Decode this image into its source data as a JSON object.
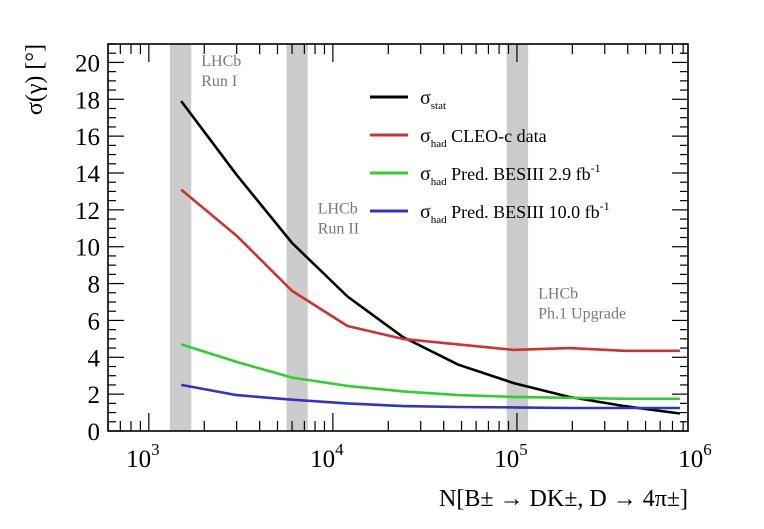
{
  "chart_data": {
    "type": "line",
    "xscale": "log",
    "xlim": [
      600,
      850000
    ],
    "ylim": [
      0,
      21
    ],
    "xlabel": "N[B± → DK±, D → 4π±]",
    "ylabel": "σ(γ) [°]",
    "x_ticks": [
      {
        "value": 1000,
        "base": "10",
        "exp": "3"
      },
      {
        "value": 10000,
        "base": "10",
        "exp": "4"
      },
      {
        "value": 100000,
        "base": "10",
        "exp": "5"
      },
      {
        "value": 1000000,
        "base": "10",
        "exp": "6"
      }
    ],
    "y_ticks": [
      0,
      2,
      4,
      6,
      8,
      10,
      12,
      14,
      16,
      18,
      20
    ],
    "x": [
      1500,
      3000,
      6000,
      12000,
      24000,
      48000,
      96000,
      192000,
      384000,
      768000
    ],
    "series": [
      {
        "name": "stat",
        "sym": "σ",
        "sub": "stat",
        "text": "",
        "sup": "",
        "color": "#000000",
        "values": [
          17.9,
          13.9,
          10.2,
          7.3,
          5.1,
          3.6,
          2.6,
          1.85,
          1.35,
          0.95
        ]
      },
      {
        "name": "had-cleo",
        "sym": "σ",
        "sub": "had",
        "text": "CLEO-c data",
        "sup": "",
        "color": "#cc3333",
        "values": [
          13.1,
          10.6,
          7.6,
          5.7,
          5.0,
          4.7,
          4.4,
          4.5,
          4.35,
          4.35
        ]
      },
      {
        "name": "had-besiii-2.9",
        "sym": "σ",
        "sub": "had",
        "text": "Pred. BESIII  2.9 fb",
        "sup": "-1",
        "color": "#33cc33",
        "values": [
          4.7,
          3.75,
          2.9,
          2.45,
          2.15,
          1.95,
          1.85,
          1.8,
          1.75,
          1.75
        ]
      },
      {
        "name": "had-besiii-10.0",
        "sym": "σ",
        "sub": "had",
        "text": "Pred. BESIII 10.0 fb",
        "sup": "-1",
        "color": "#3333bb",
        "values": [
          2.5,
          1.95,
          1.7,
          1.5,
          1.35,
          1.3,
          1.28,
          1.25,
          1.25,
          1.25
        ]
      }
    ],
    "bands": [
      {
        "x_range": [
          1300,
          1700
        ],
        "label_lines": [
          "LHCb",
          "Run I"
        ],
        "label_y": 19.8
      },
      {
        "x_range": [
          5600,
          7300
        ],
        "label_lines": [
          "LHCb",
          "Run II"
        ],
        "label_y": 11.8
      },
      {
        "x_range": [
          88000,
          115000
        ],
        "label_lines": [
          "LHCb",
          "Ph.1 Upgrade"
        ],
        "label_y": 7.2
      }
    ],
    "top_marker": {
      "x_range": [
        88000,
        115000
      ],
      "y_range": [
        20.1,
        21
      ]
    },
    "legend_position": "top-right",
    "band_color": "#cccccc"
  }
}
